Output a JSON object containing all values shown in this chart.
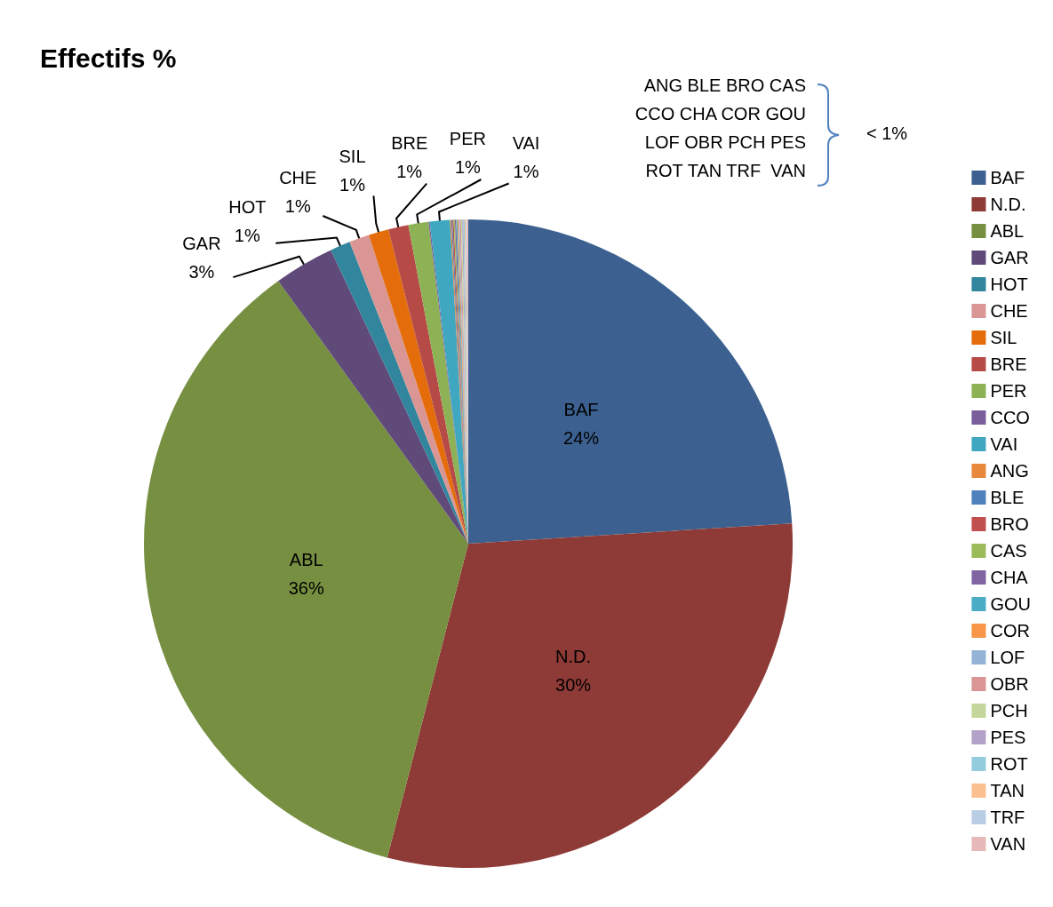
{
  "chart_data": {
    "type": "pie",
    "title": "Effectifs %",
    "categories": [
      "BAF",
      "N.D.",
      "ABL",
      "GAR",
      "HOT",
      "CHE",
      "SIL",
      "BRE",
      "PER",
      "CCO",
      "VAI",
      "ANG",
      "BLE",
      "BRO",
      "CAS",
      "CHA",
      "GOU",
      "COR",
      "LOF",
      "OBR",
      "PCH",
      "PES",
      "ROT",
      "TAN",
      "TRF",
      "VAN"
    ],
    "values": [
      24,
      30,
      36,
      3,
      1,
      1,
      1,
      1,
      1,
      0.06,
      1,
      0.06,
      0.06,
      0.06,
      0.06,
      0.06,
      0.06,
      0.06,
      0.06,
      0.06,
      0.06,
      0.06,
      0.06,
      0.06,
      0.06,
      0.06
    ],
    "value_labels": [
      "24%",
      "30%",
      "36%",
      "3%",
      "1%",
      "1%",
      "1%",
      "1%",
      "1%",
      null,
      "1%",
      null,
      null,
      null,
      null,
      null,
      null,
      null,
      null,
      null,
      null,
      null,
      null,
      null,
      null,
      null
    ],
    "colors": [
      "#3c6190",
      "#8e3a36",
      "#768f41",
      "#5f4a7a",
      "#31859c",
      "#d99694",
      "#e46c0a",
      "#b64a47",
      "#8db255",
      "#7a5d9b",
      "#3fa7c0",
      "#e7883b",
      "#4f81bd",
      "#c0504d",
      "#9bbb59",
      "#8064a2",
      "#4bacc6",
      "#f79646",
      "#95b3d7",
      "#d99694",
      "#c3d69b",
      "#b3a2c7",
      "#93cddd",
      "#fac090",
      "#b9cde5",
      "#e6b9b8"
    ],
    "annotations": [
      "ANG BLE BRO CAS\nCCO CHA COR GOU\nLOF OBR PCH PES\nROT TAN TRF  VAN",
      "< 1%"
    ],
    "legend": "right"
  }
}
